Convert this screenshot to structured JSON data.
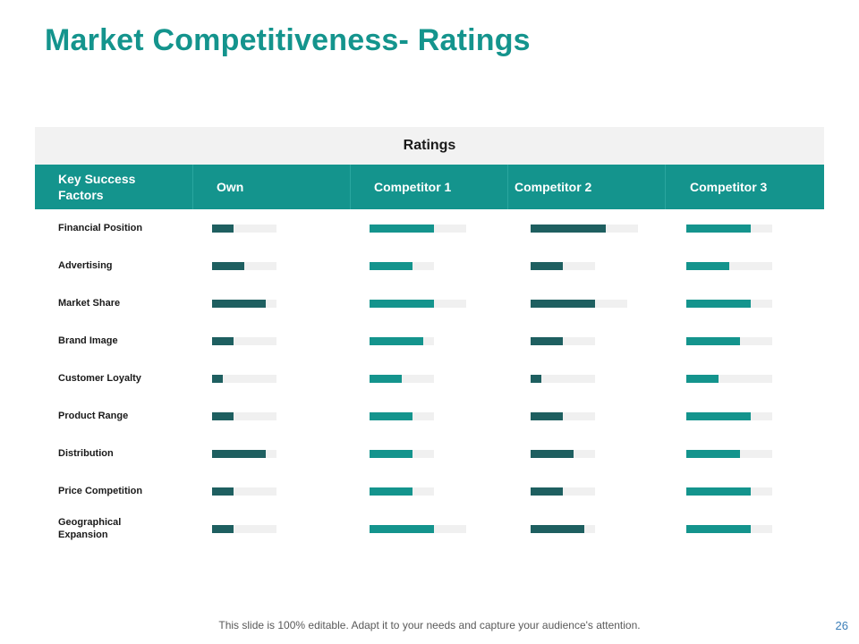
{
  "slide": {
    "title": "Market Competitiveness- Ratings",
    "footer": "This slide is 100% editable. Adapt it to your needs and capture your audience's attention.",
    "page_number": "26"
  },
  "colors": {
    "title": "#14948d",
    "header_bg": "#14948d",
    "band_bg": "#f2f2f2",
    "bar_dark": "#1e5f60",
    "bar_teal": "#14948d",
    "bar_track": "#f0f0f0"
  },
  "chart_data": {
    "type": "bar",
    "title": "Ratings",
    "row_header": "Key Success Factors",
    "series": [
      {
        "name": "Own",
        "color": "#1e5f60",
        "values": [
          2,
          3,
          5,
          2,
          1,
          2,
          5,
          2,
          2
        ]
      },
      {
        "name": "Competitor 1",
        "color": "#14948d",
        "values": [
          6,
          4,
          6,
          5,
          3,
          4,
          4,
          4,
          6
        ]
      },
      {
        "name": "Competitor 2",
        "color": "#1e5f60",
        "values": [
          7,
          3,
          6,
          3,
          1,
          3,
          4,
          3,
          5
        ]
      },
      {
        "name": "Competitor 3",
        "color": "#14948d",
        "values": [
          6,
          4,
          6,
          5,
          3,
          6,
          5,
          6,
          6
        ]
      }
    ],
    "categories": [
      "Financial Position",
      "Advertising",
      "Market Share",
      "Brand Image",
      "Customer Loyalty",
      "Product Range",
      "Distribution",
      "Price Competition",
      "Geographical Expansion"
    ]
  }
}
